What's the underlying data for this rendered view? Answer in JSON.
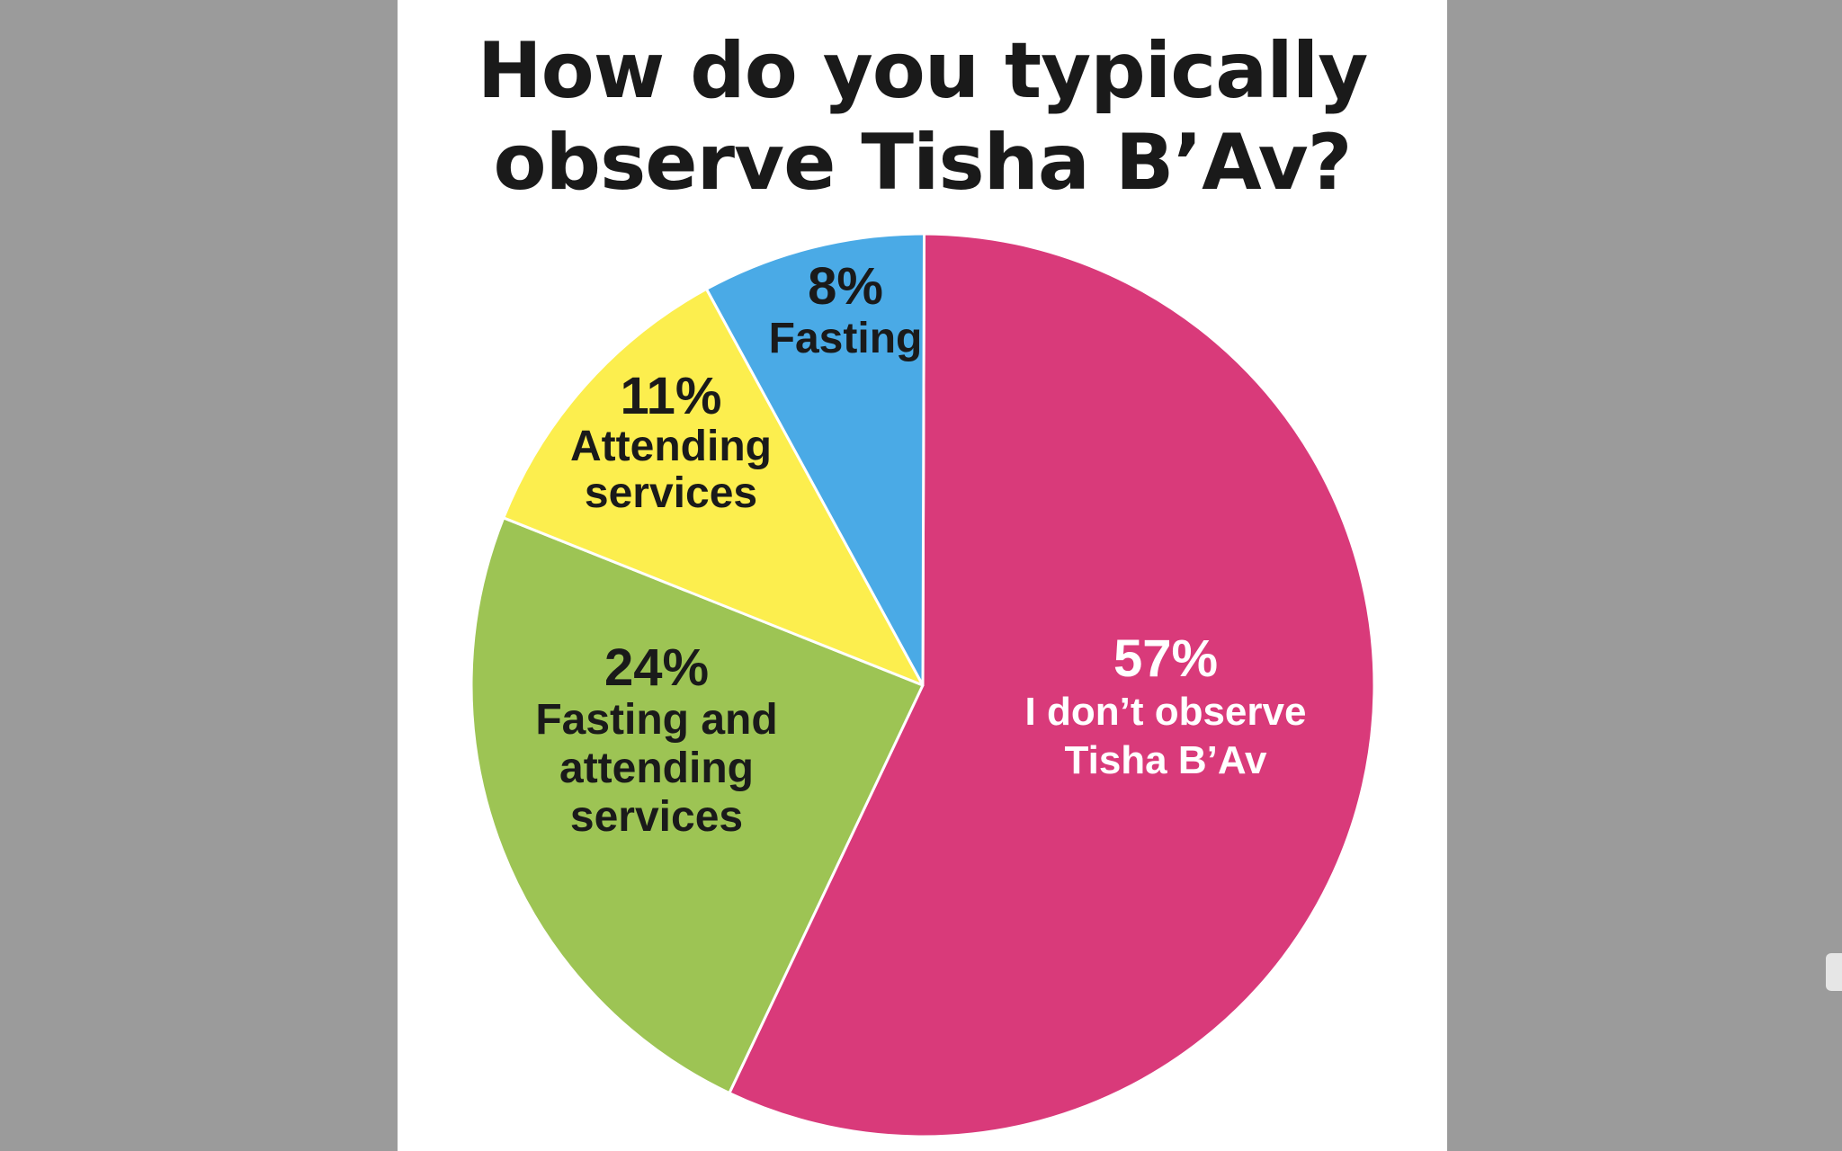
{
  "chart_data": {
    "type": "pie",
    "title": "How do you typically observe Tisha B’Av?",
    "title_lines": [
      "How do you typically",
      "observe Tisha B’Av?"
    ],
    "slices": [
      {
        "pct_label": "57%",
        "label_lines": [
          "I don’t observe",
          "Tisha B’Av"
        ],
        "label": "I don’t observe Tisha B’Av",
        "value": 57,
        "color": "#d93a7a",
        "text_color": "#ffffff"
      },
      {
        "pct_label": "24%",
        "label_lines": [
          "Fasting and",
          "attending",
          "services"
        ],
        "label": "Fasting and attending services",
        "value": 24,
        "color": "#9dc454",
        "text_color": "#1a1a1a"
      },
      {
        "pct_label": "11%",
        "label_lines": [
          "Attending",
          "services"
        ],
        "label": "Attending services",
        "value": 11,
        "color": "#fcee4e",
        "text_color": "#1a1a1a"
      },
      {
        "pct_label": "8%",
        "label_lines": [
          "Fasting"
        ],
        "label": "Fasting",
        "value": 8,
        "color": "#4aaae6",
        "text_color": "#1a1a1a"
      }
    ]
  },
  "colors": {
    "background": "#9b9b9b",
    "panel": "#ffffff",
    "title": "#1a1a1a"
  }
}
